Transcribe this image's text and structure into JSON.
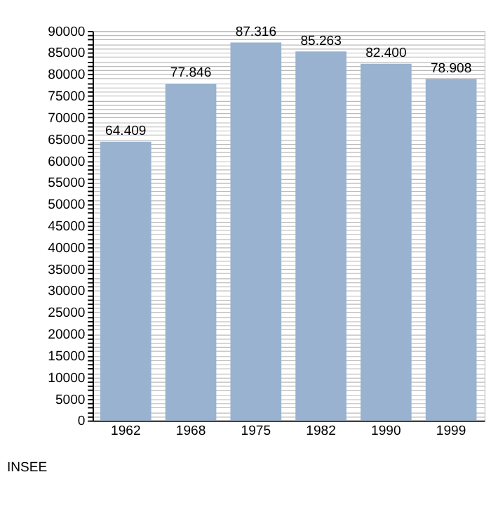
{
  "chart_data": {
    "type": "bar",
    "categories": [
      "1962",
      "1968",
      "1975",
      "1982",
      "1990",
      "1999"
    ],
    "values": [
      64409,
      77846,
      87316,
      85263,
      82400,
      78908
    ],
    "value_labels": [
      "64.409",
      "77.846",
      "87.316",
      "85.263",
      "82.400",
      "78.908"
    ],
    "color": "#98b2d0",
    "ylim": [
      0,
      90000
    ],
    "yticks": [
      0,
      {
        "value": 1000,
        "label": null
      },
      {
        "value": 2000,
        "label": null
      },
      {
        "value": 3000,
        "label": null
      },
      {
        "value": 4000,
        "label": null
      },
      5000,
      {
        "value": 6000,
        "label": null
      },
      {
        "value": 7000,
        "label": null
      },
      {
        "value": 8000,
        "label": null
      },
      {
        "value": 9000,
        "label": null
      },
      10000,
      {
        "value": 11000,
        "label": null
      },
      {
        "value": 12000,
        "label": null
      },
      {
        "value": 13000,
        "label": null
      },
      {
        "value": 14000,
        "label": null
      },
      15000,
      {
        "value": 16000,
        "label": null
      },
      {
        "value": 17000,
        "label": null
      },
      {
        "value": 18000,
        "label": null
      },
      {
        "value": 19000,
        "label": null
      },
      20000,
      {
        "value": 21000,
        "label": null
      },
      {
        "value": 22000,
        "label": null
      },
      {
        "value": 23000,
        "label": null
      },
      {
        "value": 24000,
        "label": null
      },
      25000,
      {
        "value": 26000,
        "label": null
      },
      {
        "value": 27000,
        "label": null
      },
      {
        "value": 28000,
        "label": null
      },
      {
        "value": 29000,
        "label": null
      },
      30000,
      {
        "value": 31000,
        "label": null
      },
      {
        "value": 32000,
        "label": null
      },
      {
        "value": 33000,
        "label": null
      },
      {
        "value": 34000,
        "label": null
      },
      35000,
      {
        "value": 36000,
        "label": null
      },
      {
        "value": 37000,
        "label": null
      },
      {
        "value": 38000,
        "label": null
      },
      {
        "value": 39000,
        "label": null
      },
      40000,
      {
        "value": 41000,
        "label": null
      },
      {
        "value": 42000,
        "label": null
      },
      {
        "value": 43000,
        "label": null
      },
      {
        "value": 44000,
        "label": null
      },
      45000,
      {
        "value": 46000,
        "label": null
      },
      {
        "value": 47000,
        "label": null
      },
      {
        "value": 48000,
        "label": null
      },
      {
        "value": 49000,
        "label": null
      },
      50000,
      {
        "value": 51000,
        "label": null
      },
      {
        "value": 52000,
        "label": null
      },
      {
        "value": 53000,
        "label": null
      },
      {
        "value": 54000,
        "label": null
      },
      55000,
      {
        "value": 56000,
        "label": null
      },
      {
        "value": 57000,
        "label": null
      },
      {
        "value": 58000,
        "label": null
      },
      {
        "value": 59000,
        "label": null
      },
      60000,
      {
        "value": 61000,
        "label": null
      },
      {
        "value": 62000,
        "label": null
      },
      {
        "value": 63000,
        "label": null
      },
      {
        "value": 64000,
        "label": null
      },
      65000,
      {
        "value": 66000,
        "label": null
      },
      {
        "value": 67000,
        "label": null
      },
      {
        "value": 68000,
        "label": null
      },
      {
        "value": 69000,
        "label": null
      },
      70000,
      {
        "value": 71000,
        "label": null
      },
      {
        "value": 72000,
        "label": null
      },
      {
        "value": 73000,
        "label": null
      },
      {
        "value": 74000,
        "label": null
      },
      75000,
      {
        "value": 76000,
        "label": null
      },
      {
        "value": 77000,
        "label": null
      },
      {
        "value": 78000,
        "label": null
      },
      {
        "value": 79000,
        "label": null
      },
      80000,
      {
        "value": 81000,
        "label": null
      },
      {
        "value": 82000,
        "label": null
      },
      {
        "value": 83000,
        "label": null
      },
      {
        "value": 84000,
        "label": null
      },
      85000,
      {
        "value": 86000,
        "label": null
      },
      {
        "value": 87000,
        "label": null
      },
      {
        "value": 88000,
        "label": null
      },
      {
        "value": 89000,
        "label": null
      },
      90000
    ],
    "grid": "y",
    "annotations": [
      "INSEE"
    ]
  }
}
